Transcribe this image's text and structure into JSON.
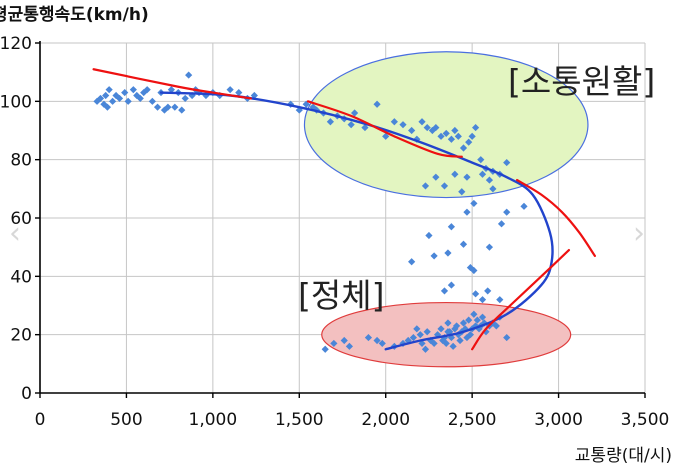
{
  "chart_data": {
    "type": "scatter",
    "ylabel": "평균통행속도(km/h)",
    "xlabel": "교통량(대/시)",
    "xlim": [
      0,
      3500
    ],
    "ylim": [
      0,
      120
    ],
    "x_ticks": [
      0,
      500,
      1000,
      1500,
      2000,
      2500,
      3000,
      3500
    ],
    "x_tick_labels": [
      "0",
      "500",
      "1,000",
      "1,500",
      "2,000",
      "2,500",
      "3,000",
      "3,500"
    ],
    "y_ticks": [
      0,
      20,
      40,
      60,
      80,
      100,
      120
    ],
    "y_tick_labels": [
      "0",
      "20",
      "40",
      "60",
      "80",
      "100",
      "120"
    ],
    "grid": true,
    "annotations": [
      {
        "label": "[소통원활]",
        "color": "#222222"
      },
      {
        "label": "[정체]",
        "color": "#222222"
      }
    ],
    "regions": [
      {
        "label": "소통원활",
        "center": [
          2350,
          92
        ],
        "radius": [
          820,
          25
        ],
        "fill": "#e3f5c1",
        "stroke": "#4a6fe0"
      },
      {
        "label": "정체",
        "center": [
          2350,
          20
        ],
        "radius": [
          720,
          11
        ],
        "fill": "#f3c0c0",
        "stroke": "#e03c3c"
      }
    ],
    "fitted_curve": {
      "color": "#2244cc",
      "points": [
        [
          700,
          103
        ],
        [
          1100,
          102
        ],
        [
          1500,
          98
        ],
        [
          1900,
          92
        ],
        [
          2200,
          86
        ],
        [
          2500,
          79
        ],
        [
          2700,
          74
        ],
        [
          2850,
          68
        ],
        [
          2950,
          55
        ],
        [
          2960,
          45
        ],
        [
          2900,
          37
        ],
        [
          2700,
          27
        ],
        [
          2450,
          21
        ],
        [
          2200,
          18
        ],
        [
          2000,
          15
        ]
      ]
    },
    "trend_lines": [
      {
        "color": "#ee1111",
        "points": [
          [
            310,
            111
          ],
          [
            800,
            105
          ],
          [
            1000,
            103
          ],
          [
            1220,
            101
          ]
        ]
      },
      {
        "color": "#ee1111",
        "points": [
          [
            1550,
            100
          ],
          [
            1800,
            95
          ],
          [
            2050,
            88
          ],
          [
            2300,
            82
          ],
          [
            2440,
            81
          ]
        ]
      },
      {
        "color": "#ee1111",
        "points": [
          [
            2760,
            73
          ],
          [
            2900,
            68
          ],
          [
            3020,
            62
          ],
          [
            3120,
            55
          ],
          [
            3210,
            47
          ]
        ]
      },
      {
        "color": "#ee1111",
        "points": [
          [
            3060,
            49
          ],
          [
            2900,
            40
          ],
          [
            2720,
            30
          ],
          [
            2580,
            22
          ],
          [
            2500,
            15
          ]
        ]
      }
    ],
    "series": [
      {
        "color": "#4a86d8",
        "points": [
          [
            330,
            100
          ],
          [
            350,
            101
          ],
          [
            370,
            99
          ],
          [
            380,
            102
          ],
          [
            390,
            98
          ],
          [
            400,
            104
          ],
          [
            420,
            100
          ],
          [
            440,
            102
          ],
          [
            460,
            101
          ],
          [
            490,
            103
          ],
          [
            510,
            100
          ],
          [
            540,
            104
          ],
          [
            560,
            102
          ],
          [
            580,
            101
          ],
          [
            600,
            103
          ],
          [
            620,
            104
          ],
          [
            650,
            100
          ],
          [
            680,
            98
          ],
          [
            700,
            103
          ],
          [
            720,
            97
          ],
          [
            740,
            98
          ],
          [
            760,
            104
          ],
          [
            780,
            98
          ],
          [
            800,
            103
          ],
          [
            820,
            97
          ],
          [
            840,
            101
          ],
          [
            860,
            109
          ],
          [
            880,
            102
          ],
          [
            900,
            104
          ],
          [
            920,
            103
          ],
          [
            960,
            102
          ],
          [
            1000,
            103
          ],
          [
            1040,
            102
          ],
          [
            1100,
            104
          ],
          [
            1150,
            103
          ],
          [
            1200,
            101
          ],
          [
            1240,
            102
          ],
          [
            1450,
            99
          ],
          [
            1500,
            97
          ],
          [
            1540,
            99
          ],
          [
            1580,
            98
          ],
          [
            1600,
            97
          ],
          [
            1640,
            96
          ],
          [
            1680,
            93
          ],
          [
            1720,
            95
          ],
          [
            1760,
            94
          ],
          [
            1800,
            92
          ],
          [
            1820,
            96
          ],
          [
            1880,
            91
          ],
          [
            1950,
            99
          ],
          [
            2000,
            88
          ],
          [
            2050,
            93
          ],
          [
            2100,
            92
          ],
          [
            2150,
            90
          ],
          [
            2180,
            87
          ],
          [
            2210,
            93
          ],
          [
            2240,
            91
          ],
          [
            2270,
            90
          ],
          [
            2290,
            91
          ],
          [
            2320,
            88
          ],
          [
            2350,
            89
          ],
          [
            2380,
            87
          ],
          [
            2400,
            90
          ],
          [
            2420,
            88
          ],
          [
            2450,
            84
          ],
          [
            2480,
            86
          ],
          [
            2500,
            88
          ],
          [
            2520,
            91
          ],
          [
            2550,
            80
          ],
          [
            2580,
            77
          ],
          [
            2620,
            76
          ],
          [
            2660,
            75
          ],
          [
            2700,
            79
          ],
          [
            2230,
            71
          ],
          [
            2290,
            74
          ],
          [
            2340,
            71
          ],
          [
            2400,
            75
          ],
          [
            2470,
            74
          ],
          [
            2560,
            75
          ],
          [
            2620,
            70
          ],
          [
            2440,
            69
          ],
          [
            2600,
            73
          ],
          [
            2470,
            62
          ],
          [
            2380,
            57
          ],
          [
            2280,
            47
          ],
          [
            2250,
            54
          ],
          [
            2340,
            35
          ],
          [
            2360,
            48
          ],
          [
            2450,
            51
          ],
          [
            2490,
            43
          ],
          [
            2510,
            42
          ],
          [
            2510,
            65
          ],
          [
            2600,
            50
          ],
          [
            2670,
            58
          ],
          [
            2700,
            62
          ],
          [
            2800,
            64
          ],
          [
            2660,
            32
          ],
          [
            2590,
            35
          ],
          [
            2560,
            32
          ],
          [
            2360,
            21
          ],
          [
            2380,
            37
          ],
          [
            2150,
            45
          ],
          [
            2520,
            34
          ],
          [
            1650,
            15
          ],
          [
            1700,
            17
          ],
          [
            1760,
            18
          ],
          [
            1790,
            16
          ],
          [
            1900,
            19
          ],
          [
            1950,
            18
          ],
          [
            1980,
            17
          ],
          [
            2050,
            16
          ],
          [
            2100,
            17
          ],
          [
            2130,
            18
          ],
          [
            2160,
            19
          ],
          [
            2180,
            22
          ],
          [
            2200,
            20
          ],
          [
            2210,
            17
          ],
          [
            2230,
            15
          ],
          [
            2240,
            21
          ],
          [
            2260,
            18
          ],
          [
            2280,
            17
          ],
          [
            2300,
            20
          ],
          [
            2320,
            22
          ],
          [
            2330,
            18
          ],
          [
            2340,
            19
          ],
          [
            2350,
            17
          ],
          [
            2360,
            24
          ],
          [
            2370,
            21
          ],
          [
            2380,
            19
          ],
          [
            2390,
            16
          ],
          [
            2400,
            22
          ],
          [
            2410,
            23
          ],
          [
            2420,
            20
          ],
          [
            2430,
            18
          ],
          [
            2440,
            21
          ],
          [
            2450,
            24
          ],
          [
            2460,
            22
          ],
          [
            2470,
            19
          ],
          [
            2480,
            25
          ],
          [
            2490,
            20
          ],
          [
            2500,
            22
          ],
          [
            2510,
            27
          ],
          [
            2520,
            23
          ],
          [
            2530,
            25
          ],
          [
            2540,
            22
          ],
          [
            2550,
            23
          ],
          [
            2560,
            26
          ],
          [
            2570,
            24
          ],
          [
            2580,
            21
          ],
          [
            2600,
            23
          ],
          [
            2620,
            24
          ],
          [
            2640,
            23
          ],
          [
            2660,
            26
          ],
          [
            2700,
            19
          ]
        ]
      }
    ]
  }
}
